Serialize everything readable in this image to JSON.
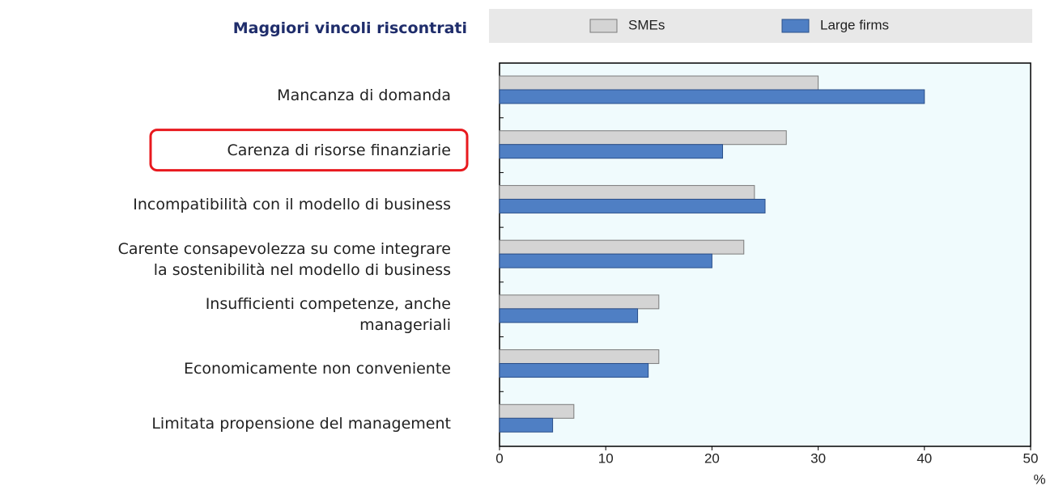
{
  "chart_data": {
    "type": "hbar",
    "title": "Maggiori vincoli riscontrati",
    "categories": [
      "Mancanza di domanda",
      "Carenza di risorse finanziarie",
      "Incompatibilità con il modello di business",
      "Carente consapevolezza su come integrare\nla sostenibilità nel modello di business",
      "Insufficienti competenze, anche\nmanageriali",
      "Economicamente non conveniente",
      "Limitata propensione del management"
    ],
    "series": [
      {
        "name": "SMEs",
        "color": "#d4d4d4",
        "values": [
          30,
          27,
          24,
          23,
          15,
          15,
          7
        ]
      },
      {
        "name": "Large firms",
        "color": "#4f7fc4",
        "values": [
          40,
          21,
          25,
          20,
          13,
          14,
          5
        ]
      }
    ],
    "xlim": [
      0,
      50
    ],
    "xticks": [
      0,
      10,
      20,
      30,
      40,
      50
    ],
    "xlabel": "%",
    "highlight_index": 1,
    "grid": false
  }
}
